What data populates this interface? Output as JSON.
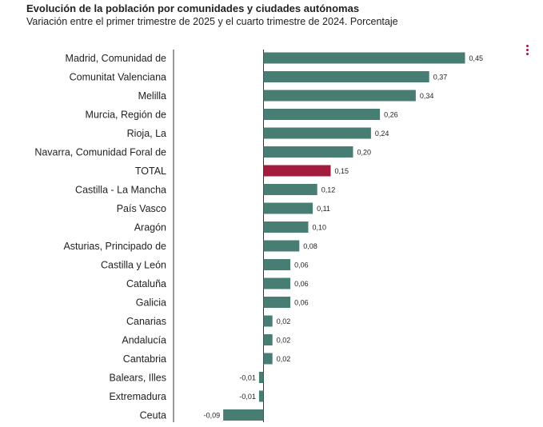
{
  "header": {
    "title": "Evolución de la población por comunidades y ciudades autónomas",
    "subtitle": "Variación entre el primer trimestre de 2025 y el cuarto trimestre de 2024. Porcentaje"
  },
  "menu": {
    "icon": "more-vertical-icon",
    "color": "#9b1b3a"
  },
  "chart_data": {
    "type": "bar",
    "orientation": "horizontal",
    "title": "Evolución de la población por comunidades y ciudades autónomas",
    "subtitle": "Variación entre el primer trimestre de 2025 y el cuarto trimestre de 2024. Porcentaje",
    "categories": [
      "Madrid, Comunidad de",
      "Comunitat Valenciana",
      "Melilla",
      "Murcia, Región de",
      "Rioja, La",
      "Navarra, Comunidad Foral de",
      "TOTAL",
      "Castilla - La Mancha",
      "País Vasco",
      "Aragón",
      "Asturias, Principado de",
      "Castilla y León",
      "Cataluña",
      "Galicia",
      "Canarias",
      "Andalucía",
      "Cantabria",
      "Balears, Illes",
      "Extremadura",
      "Ceuta"
    ],
    "values": [
      0.45,
      0.37,
      0.34,
      0.26,
      0.24,
      0.2,
      0.15,
      0.12,
      0.11,
      0.1,
      0.08,
      0.06,
      0.06,
      0.06,
      0.02,
      0.02,
      0.02,
      -0.01,
      -0.01,
      -0.09
    ],
    "value_labels": [
      "0,45",
      "0,37",
      "0,34",
      "0,26",
      "0,24",
      "0,20",
      "0,15",
      "0,12",
      "0,11",
      "0,10",
      "0,08",
      "0,06",
      "0,06",
      "0,06",
      "0,02",
      "0,02",
      "0,02",
      "-0,01",
      "-0,01",
      "-0,09"
    ],
    "highlight": "TOTAL",
    "colors": {
      "bar": "#487d73",
      "highlight": "#a31b3d"
    },
    "xlim": [
      -0.09,
      0.45
    ],
    "grid": false,
    "legend": "none"
  }
}
